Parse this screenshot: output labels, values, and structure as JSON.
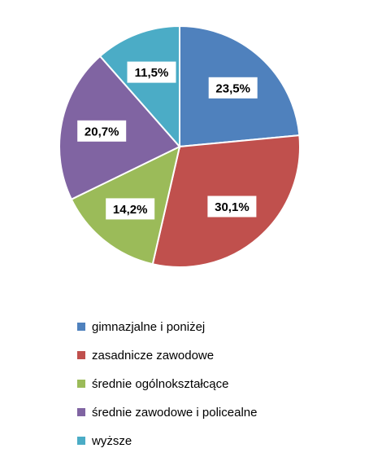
{
  "chart_data": {
    "type": "pie",
    "title": "",
    "legend_position": "bottom",
    "start_angle_deg": 0,
    "direction": "clockwise",
    "slices": [
      {
        "name": "gimnazjalne i poniżej",
        "value": 23.5,
        "label": "23,5%",
        "color": "#4F81BD"
      },
      {
        "name": "zasadnicze zawodowe",
        "value": 30.1,
        "label": "30,1%",
        "color": "#C0504D"
      },
      {
        "name": "średnie ogólnokształcące",
        "value": 14.2,
        "label": "14,2%",
        "color": "#9BBB59"
      },
      {
        "name": "średnie zawodowe i policealne",
        "value": 20.7,
        "label": "20,7%",
        "color": "#8064A2"
      },
      {
        "name": "wyższe",
        "value": 11.5,
        "label": "11,5%",
        "color": "#4BACC6"
      }
    ]
  }
}
